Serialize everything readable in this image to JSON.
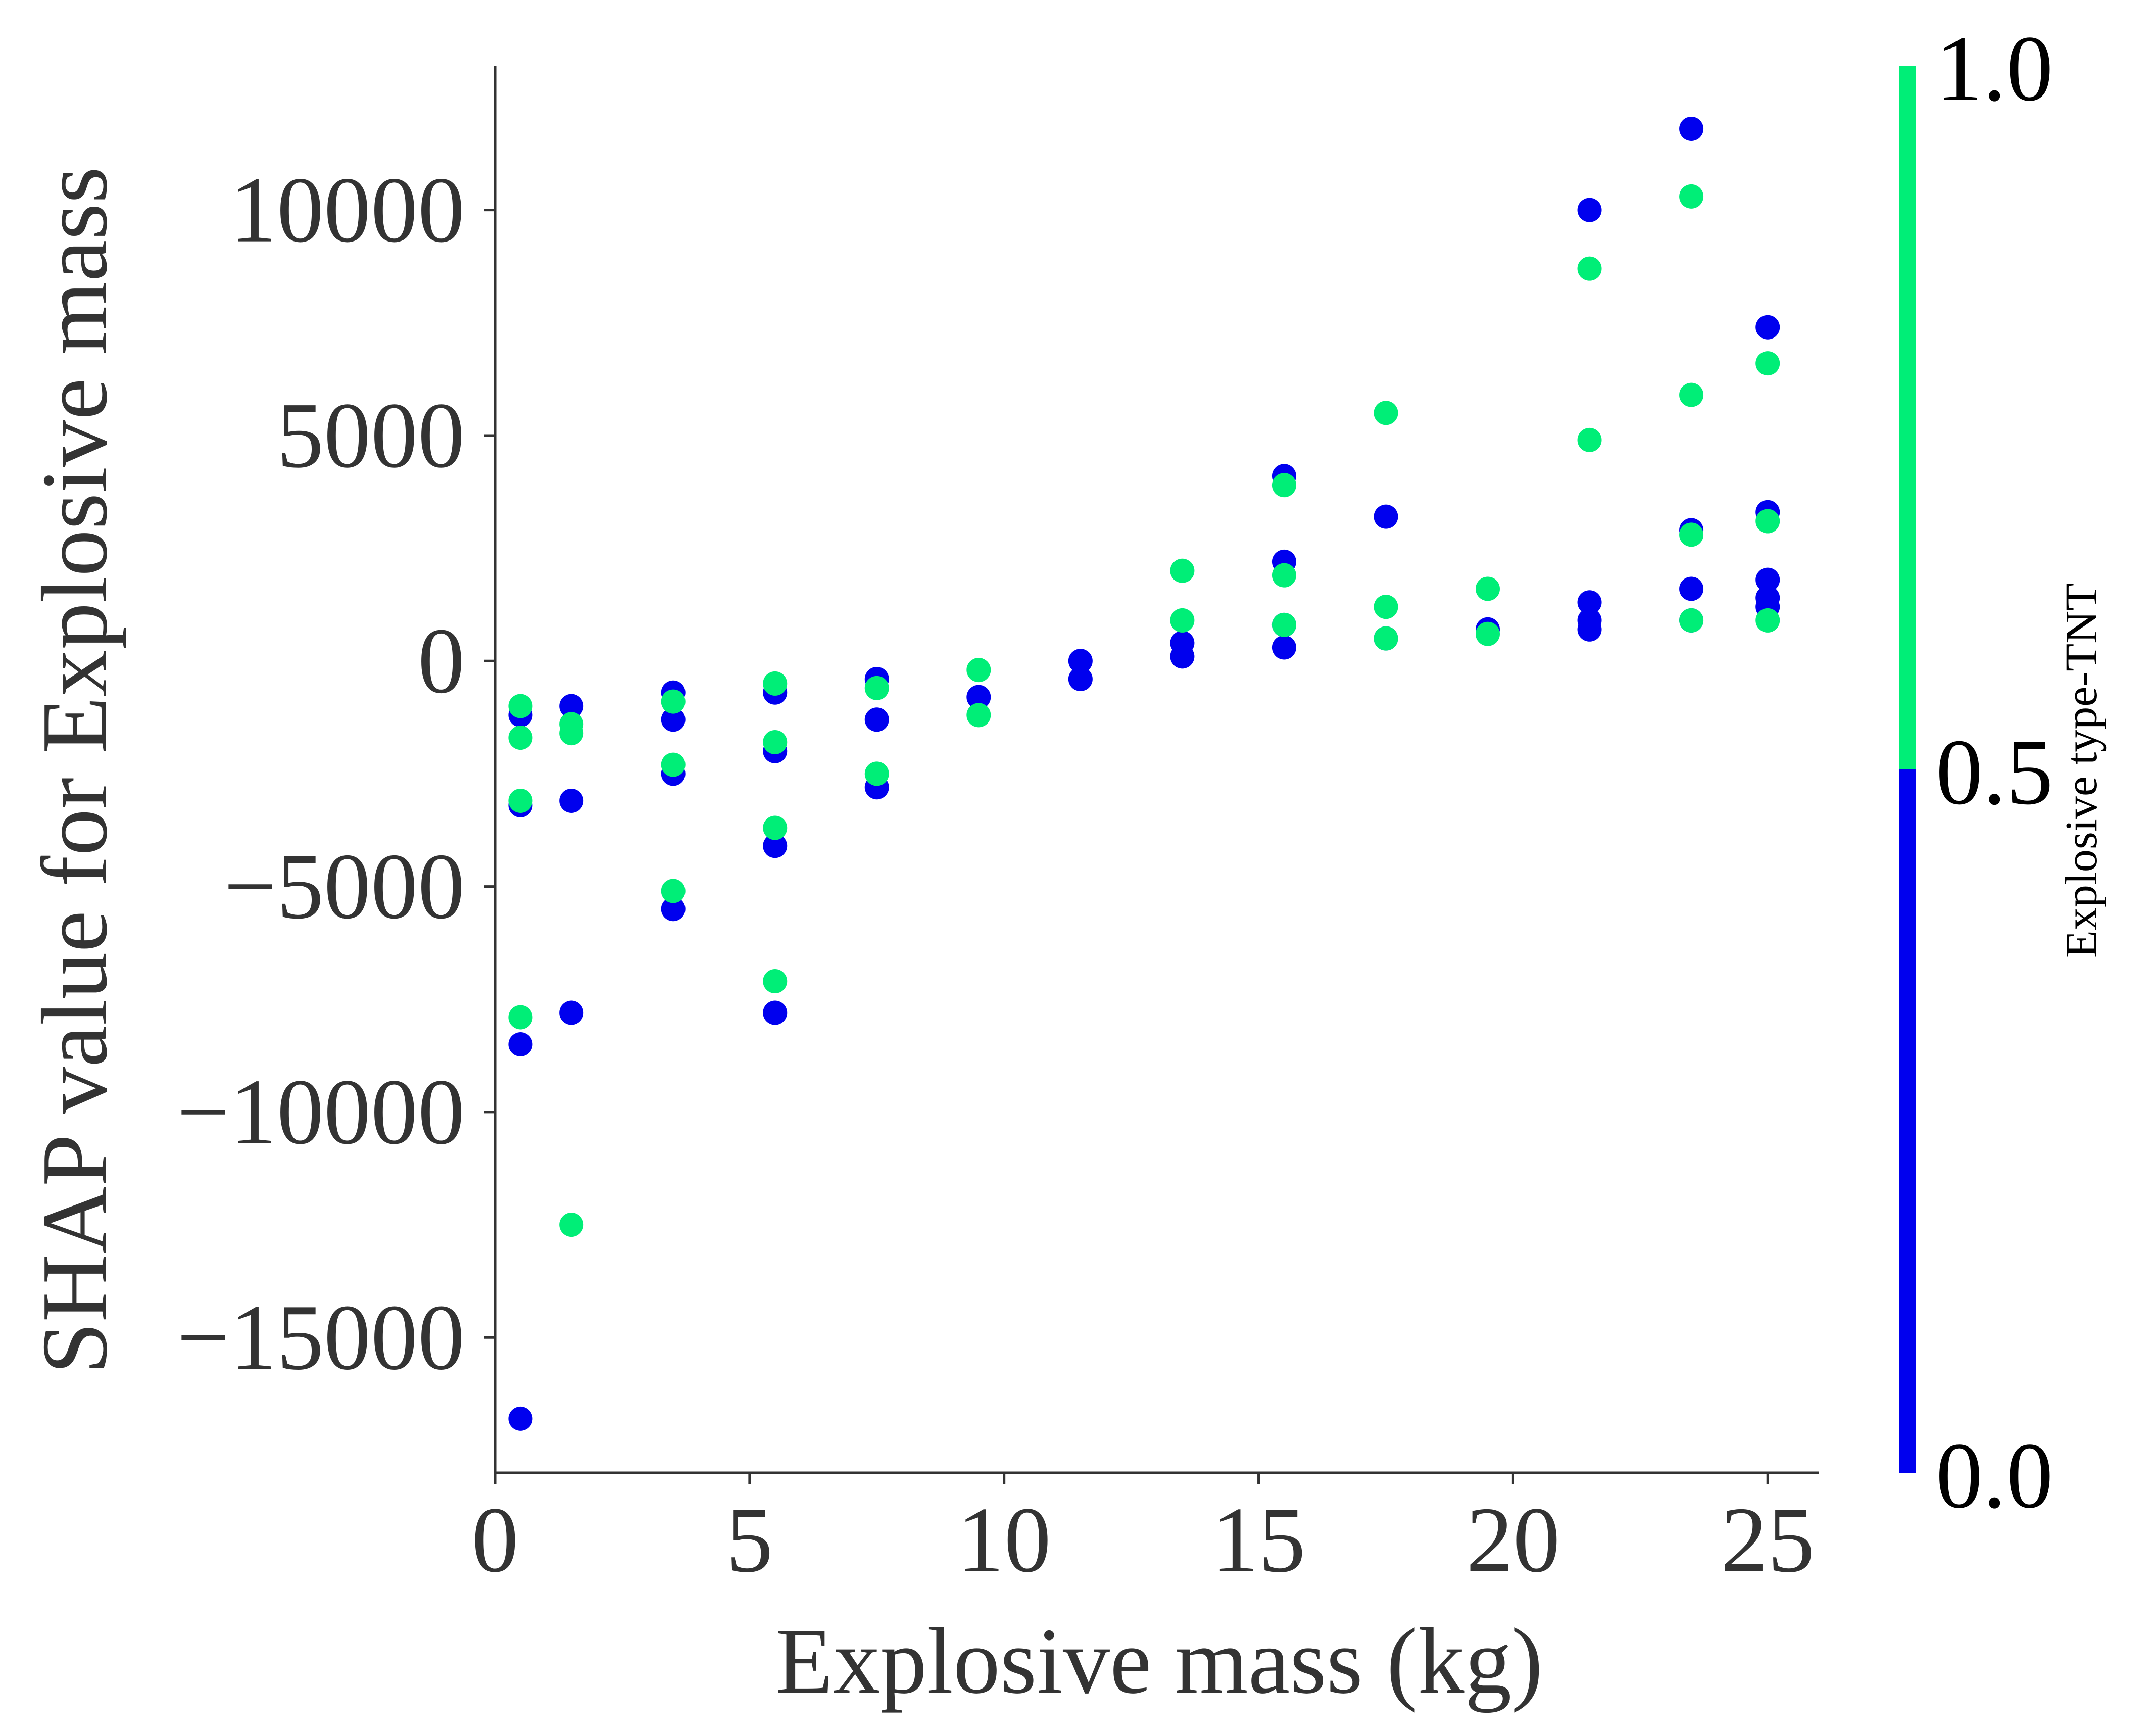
{
  "chart_data": {
    "type": "scatter",
    "xlabel": "Explosive mass (kg)",
    "ylabel": "SHAP value for Explosive mass",
    "xlim": [
      0,
      26
    ],
    "ylim": [
      -18000,
      13200
    ],
    "xticks": [
      0,
      5,
      10,
      15,
      20,
      25
    ],
    "xtick_labels": [
      "0",
      "5",
      "10",
      "15",
      "20",
      "25"
    ],
    "yticks": [
      10000,
      5000,
      0,
      -5000,
      -10000,
      -15000
    ],
    "ytick_labels": [
      "10000",
      "5000",
      "0",
      "−5000",
      "−10000",
      "−15000"
    ],
    "grid": false,
    "colorbar": {
      "label": "Explosive type-TNT",
      "range": [
        0,
        1
      ],
      "ticks": [
        0.0,
        0.5,
        1.0
      ],
      "tick_labels": [
        "0.0",
        "0.5",
        "1.0"
      ],
      "colors": {
        "low": "#0000ee",
        "high": "#00ee77"
      }
    },
    "series": [
      {
        "color_value": 0,
        "color": "#0000ee",
        "x": [
          0.5,
          0.5,
          0.5,
          0.5,
          1.5,
          1.5,
          1.5,
          3.5,
          3.5,
          3.5,
          3.5,
          5.5,
          5.5,
          5.5,
          5.5,
          7.5,
          7.5,
          7.5,
          9.5,
          11.5,
          11.5,
          13.5,
          13.5,
          15.5,
          15.5,
          15.5,
          15.5,
          17.5,
          17.5,
          19.5,
          21.5,
          21.5,
          21.5,
          21.5,
          23.5,
          23.5,
          23.5,
          23.5,
          25,
          25,
          25,
          25,
          25
        ],
        "y": [
          -1200,
          -3200,
          -8500,
          -16800,
          -1000,
          -3100,
          -7800,
          -700,
          -1300,
          -2500,
          -5500,
          -700,
          -2000,
          -4100,
          -7800,
          -400,
          -1300,
          -2800,
          -800,
          0,
          -400,
          100,
          400,
          300,
          800,
          2200,
          4100,
          500,
          3200,
          700,
          700,
          900,
          1300,
          10000,
          900,
          1600,
          2900,
          11800,
          1200,
          1400,
          1800,
          3300,
          7400
        ]
      },
      {
        "color_value": 1,
        "color": "#00ee77",
        "x": [
          0.5,
          0.5,
          0.5,
          0.5,
          1.5,
          1.5,
          1.5,
          3.5,
          3.5,
          3.5,
          5.5,
          5.5,
          5.5,
          5.5,
          7.5,
          7.5,
          9.5,
          9.5,
          13.5,
          13.5,
          15.5,
          15.5,
          15.5,
          17.5,
          17.5,
          17.5,
          19.5,
          19.5,
          21.5,
          21.5,
          23.5,
          23.5,
          23.5,
          23.5,
          25,
          25,
          25
        ],
        "y": [
          -1000,
          -1700,
          -3100,
          -7900,
          -1400,
          -1600,
          -12500,
          -900,
          -2300,
          -5100,
          -500,
          -1800,
          -3700,
          -7100,
          -600,
          -2500,
          -200,
          -1200,
          900,
          2000,
          800,
          1900,
          3900,
          500,
          1200,
          5500,
          600,
          1600,
          4900,
          8700,
          900,
          2800,
          5900,
          10300,
          900,
          3100,
          6600
        ]
      }
    ]
  }
}
